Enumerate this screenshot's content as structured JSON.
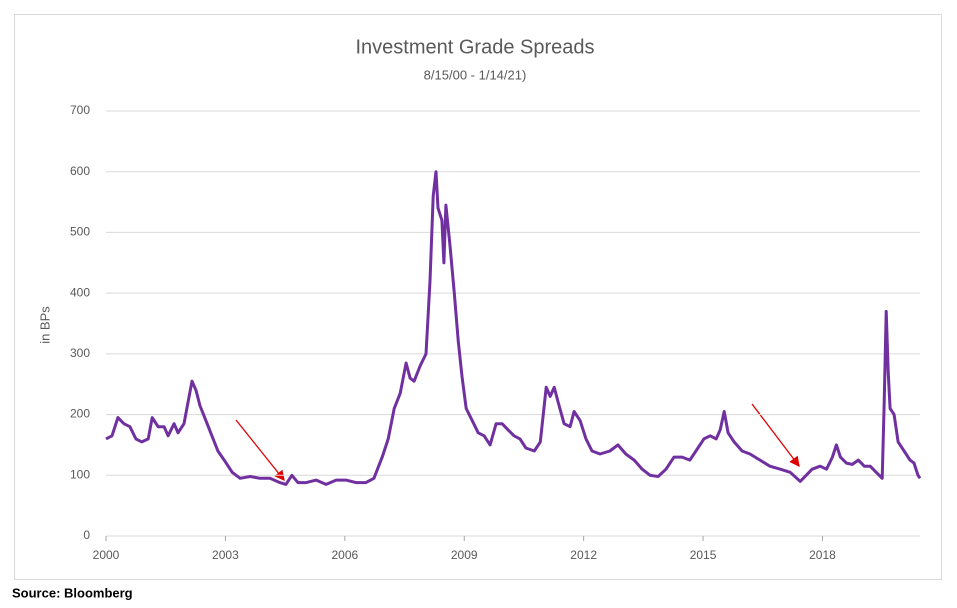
{
  "chart_data": {
    "type": "line",
    "title": "Investment Grade Spreads",
    "subtitle": "8/15/00 - 1/14/21)",
    "ylabel": "in BPs",
    "source": "Source: Bloomberg",
    "xlim": [
      2000,
      2020.45
    ],
    "xticks": [
      2000,
      2003,
      2006,
      2009,
      2012,
      2015,
      2018
    ],
    "ylim": [
      0,
      700
    ],
    "yticks": [
      0,
      100,
      200,
      300,
      400,
      500,
      600,
      700
    ],
    "grid": true,
    "series": [
      {
        "name": "Investment Grade Spreads",
        "color": "#7030a0",
        "x": [
          2000.0,
          2000.15,
          2000.3,
          2000.45,
          2000.6,
          2000.75,
          2000.9,
          2001.06,
          2001.16,
          2001.31,
          2001.46,
          2001.56,
          2001.71,
          2001.81,
          2001.96,
          2002.06,
          2002.16,
          2002.26,
          2002.36,
          2002.51,
          2002.66,
          2002.81,
          2002.97,
          2003.17,
          2003.37,
          2003.62,
          2003.87,
          2004.12,
          2004.37,
          2004.52,
          2004.67,
          2004.82,
          2005.03,
          2005.28,
          2005.53,
          2005.78,
          2006.03,
          2006.28,
          2006.53,
          2006.73,
          2006.94,
          2007.09,
          2007.24,
          2007.39,
          2007.54,
          2007.64,
          2007.74,
          2007.89,
          2008.04,
          2008.14,
          2008.22,
          2008.29,
          2008.34,
          2008.44,
          2008.49,
          2008.54,
          2008.64,
          2008.75,
          2008.85,
          2008.95,
          2009.05,
          2009.2,
          2009.35,
          2009.5,
          2009.65,
          2009.8,
          2009.95,
          2010.1,
          2010.25,
          2010.4,
          2010.55,
          2010.76,
          2010.91,
          2011.06,
          2011.16,
          2011.26,
          2011.36,
          2011.51,
          2011.66,
          2011.76,
          2011.91,
          2012.06,
          2012.21,
          2012.41,
          2012.66,
          2012.86,
          2013.06,
          2013.27,
          2013.47,
          2013.67,
          2013.87,
          2014.07,
          2014.27,
          2014.47,
          2014.67,
          2014.87,
          2015.02,
          2015.18,
          2015.33,
          2015.43,
          2015.53,
          2015.63,
          2015.78,
          2015.98,
          2016.18,
          2016.43,
          2016.68,
          2016.94,
          2017.19,
          2017.44,
          2017.59,
          2017.74,
          2017.94,
          2018.1,
          2018.25,
          2018.35,
          2018.45,
          2018.6,
          2018.75,
          2018.9,
          2019.05,
          2019.2,
          2019.35,
          2019.5,
          2019.55,
          2019.6,
          2019.65,
          2019.7,
          2019.8,
          2019.9,
          2020.05,
          2020.2,
          2020.3,
          2020.4,
          2020.45
        ],
        "values": [
          160,
          165,
          195,
          185,
          180,
          160,
          155,
          160,
          195,
          180,
          180,
          165,
          185,
          170,
          185,
          220,
          255,
          240,
          215,
          190,
          165,
          140,
          125,
          105,
          95,
          98,
          95,
          95,
          88,
          85,
          100,
          88,
          88,
          92,
          85,
          92,
          92,
          88,
          88,
          95,
          130,
          160,
          210,
          235,
          285,
          260,
          255,
          280,
          300,
          420,
          560,
          600,
          540,
          520,
          450,
          545,
          480,
          400,
          320,
          260,
          210,
          190,
          170,
          165,
          150,
          185,
          185,
          175,
          165,
          160,
          145,
          140,
          155,
          245,
          230,
          245,
          220,
          185,
          180,
          205,
          190,
          160,
          140,
          135,
          140,
          150,
          135,
          125,
          110,
          100,
          98,
          110,
          130,
          130,
          125,
          145,
          160,
          165,
          160,
          175,
          205,
          170,
          155,
          140,
          135,
          125,
          115,
          110,
          105,
          90,
          100,
          110,
          115,
          110,
          130,
          150,
          130,
          120,
          118,
          125,
          115,
          115,
          105,
          95,
          220,
          370,
          270,
          210,
          200,
          155,
          140,
          125,
          120,
          100,
          95
        ]
      }
    ]
  }
}
